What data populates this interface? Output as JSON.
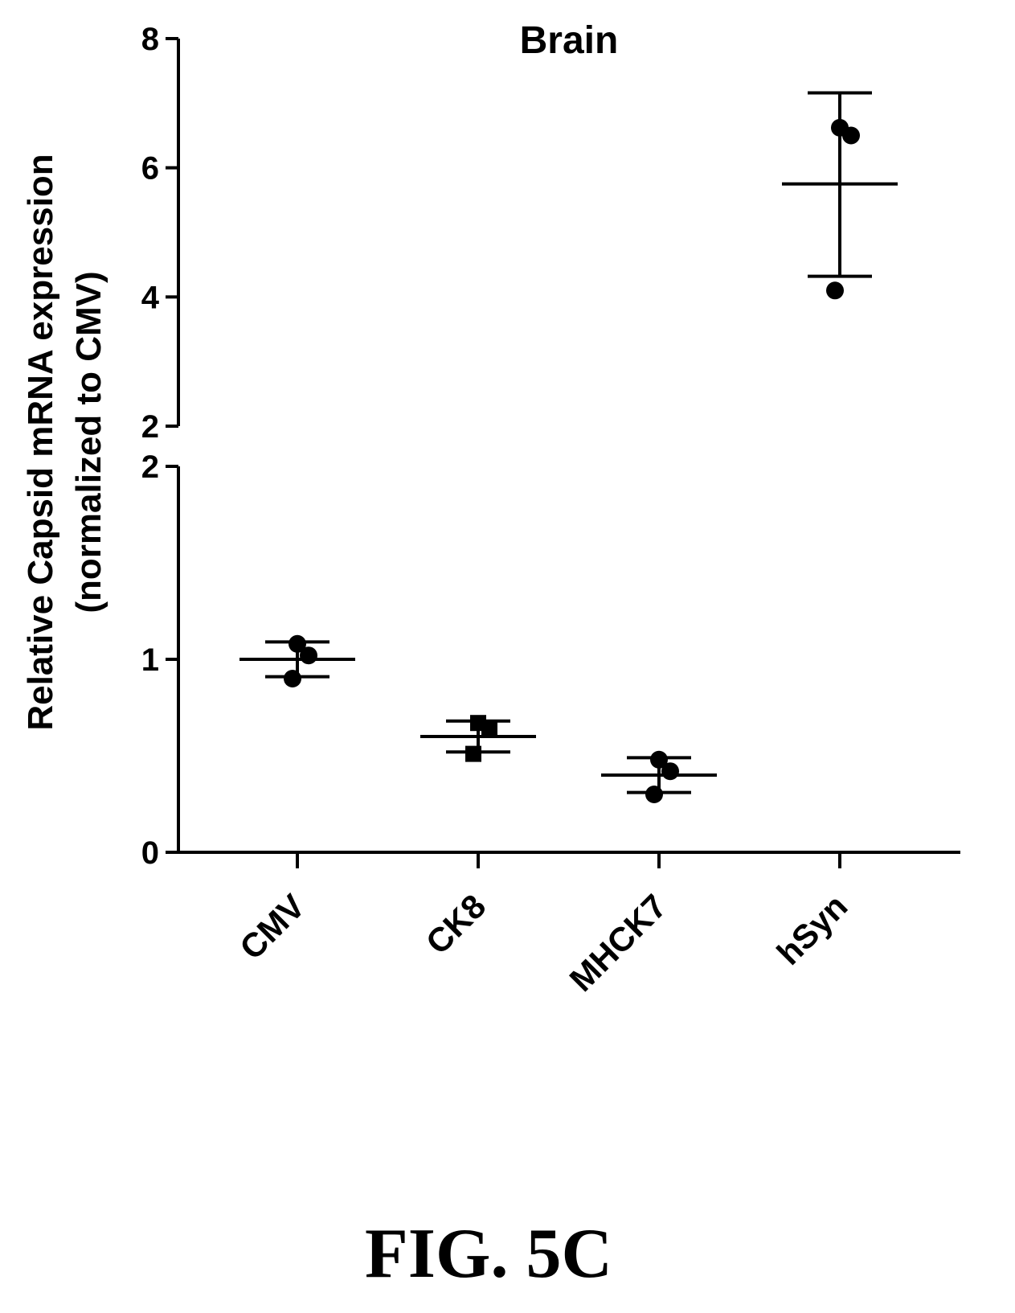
{
  "figure_caption": "FIG. 5C",
  "chart_data": {
    "type": "scatter",
    "title": "Brain",
    "xlabel": "",
    "ylabel_line1": "Relative Capsid mRNA expression",
    "ylabel_line2": "(normalized to CMV)",
    "categories": [
      "CMV",
      "CK8",
      "MHCK7",
      "hSyn"
    ],
    "y_axis_broken": true,
    "y_segments": [
      {
        "range": [
          0,
          2
        ],
        "ticks": [
          0,
          1,
          2
        ]
      },
      {
        "range": [
          2,
          8
        ],
        "ticks": [
          2,
          4,
          6,
          8
        ]
      }
    ],
    "series": [
      {
        "category": "CMV",
        "points": [
          1.08,
          1.02,
          0.9
        ],
        "mean": 1.0,
        "sd_low": 0.91,
        "sd_high": 1.09,
        "marker": "circle"
      },
      {
        "category": "CK8",
        "points": [
          0.67,
          0.64,
          0.51
        ],
        "mean": 0.6,
        "sd_low": 0.52,
        "sd_high": 0.68,
        "marker": "square"
      },
      {
        "category": "MHCK7",
        "points": [
          0.48,
          0.42,
          0.3
        ],
        "mean": 0.4,
        "sd_low": 0.31,
        "sd_high": 0.49,
        "marker": "circle"
      },
      {
        "category": "hSyn",
        "points": [
          6.62,
          6.5,
          4.1
        ],
        "mean": 5.75,
        "sd_low": 4.32,
        "sd_high": 7.16,
        "marker": "circle"
      }
    ],
    "grid": false,
    "legend": "none"
  }
}
